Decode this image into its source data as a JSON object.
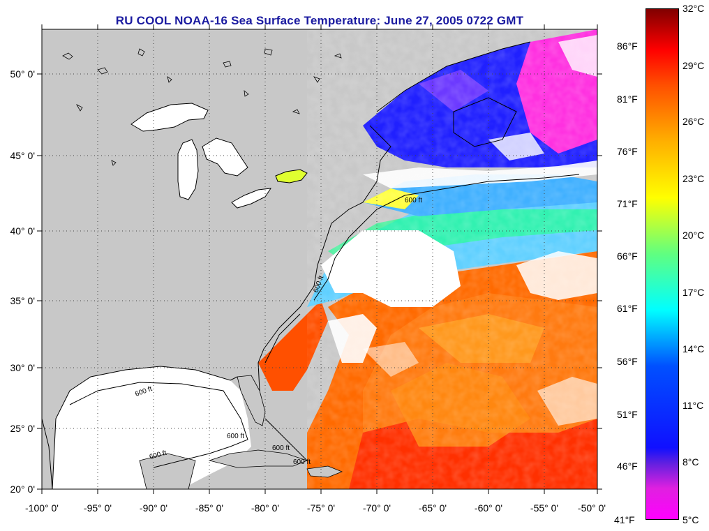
{
  "title": "RU COOL  NOAA-16  Sea Surface Temperature:  June 27, 2005 0722 GMT",
  "colors": {
    "land": "#c8c8c8",
    "cloud": "#ffffff",
    "title": "#1a1aa0"
  },
  "map": {
    "lon_range": [
      -100,
      -50
    ],
    "lat_range": [
      20,
      52
    ],
    "lon_ticks": [
      "-100° 0'",
      "-95° 0'",
      "-90° 0'",
      "-85° 0'",
      "-80° 0'",
      "-75° 0'",
      "-70° 0'",
      "-65° 0'",
      "-60° 0'",
      "-55° 0'",
      "-50° 0'"
    ],
    "lat_ticks": [
      "20° 0'",
      "25° 0'",
      "30° 0'",
      "35° 0'",
      "40° 0'",
      "45° 0'",
      "50° 0'"
    ],
    "lat_values": [
      20,
      25,
      30,
      35,
      40,
      45,
      50
    ],
    "depth_labels": [
      "600 ft",
      "600 ft",
      "600 ft",
      "600 ft",
      "600 ft",
      "600 ft",
      "600 ft"
    ]
  },
  "colorbar": {
    "celsius": [
      "32°C",
      "29°C",
      "26°C",
      "23°C",
      "20°C",
      "17°C",
      "14°C",
      "11°C",
      "8°C",
      "5°C"
    ],
    "celsius_values": [
      32,
      29,
      26,
      23,
      20,
      17,
      14,
      11,
      8,
      5
    ],
    "fahrenheit": [
      "86°F",
      "81°F",
      "76°F",
      "71°F",
      "66°F",
      "61°F",
      "56°F",
      "51°F",
      "46°F",
      "41°F"
    ],
    "fahrenheit_values": [
      86,
      81,
      76,
      71,
      66,
      61,
      56,
      51,
      46,
      41
    ]
  }
}
